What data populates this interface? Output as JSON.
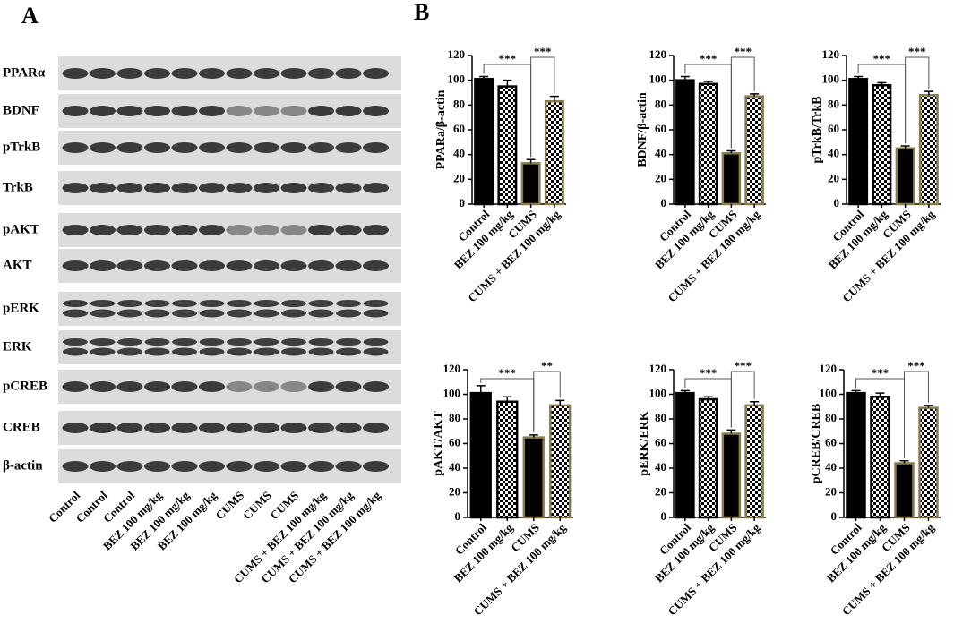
{
  "panels": [
    "A",
    "B"
  ],
  "blot": {
    "rows": [
      "PPARα",
      "BDNF",
      "pTrkB",
      "TrkB",
      "pAKT",
      "AKT",
      "pERK",
      "ERK",
      "pCREB",
      "CREB",
      "β-actin"
    ],
    "lanes": [
      "Control",
      "Control",
      "Control",
      "BEZ 100  mg/kg",
      "BEZ 100  mg/kg",
      "BEZ 100  mg/kg",
      "CUMS",
      "CUMS",
      "CUMS",
      "CUMS + BEZ 100  mg/kg",
      "CUMS + BEZ 100  mg/kg",
      "CUMS + BEZ 100  mg/kg"
    ]
  },
  "chart_data": [
    {
      "type": "bar",
      "y_label": "PPARa/β-actin",
      "categories": [
        "Control",
        "BEZ 100 mg/kg",
        "CUMS",
        "CUMS + BEZ 100 mg/kg"
      ],
      "values": [
        101,
        95,
        33,
        83
      ],
      "errors": [
        2,
        5,
        3,
        4
      ],
      "patterns": [
        "solid",
        "checker",
        "solid",
        "checker"
      ],
      "edge_colors": [
        "#000000",
        "#000000",
        "#8b7d4b",
        "#8b7d4b"
      ],
      "ylim": [
        0,
        120
      ],
      "yticks": [
        0,
        20,
        40,
        60,
        80,
        100,
        120
      ],
      "significance": [
        "***",
        "***"
      ]
    },
    {
      "type": "bar",
      "y_label": "BDNF/β-actin",
      "categories": [
        "Control",
        "BEZ 100 mg/kg",
        "CUMS",
        "CUMS + BEZ 100 mg/kg"
      ],
      "values": [
        100,
        97,
        41,
        87
      ],
      "errors": [
        3,
        2,
        2,
        2
      ],
      "patterns": [
        "solid",
        "checker",
        "solid",
        "checker"
      ],
      "edge_colors": [
        "#000000",
        "#000000",
        "#8b7d4b",
        "#8b7d4b"
      ],
      "ylim": [
        0,
        120
      ],
      "yticks": [
        0,
        20,
        40,
        60,
        80,
        100,
        120
      ],
      "significance": [
        "***",
        "***"
      ]
    },
    {
      "type": "bar",
      "y_label": "pTrkB/TrkB",
      "categories": [
        "Control",
        "BEZ 100 mg/kg",
        "CUMS",
        "CUMS + BEZ 100 mg/kg"
      ],
      "values": [
        101,
        96,
        45,
        88
      ],
      "errors": [
        2,
        2,
        2,
        3
      ],
      "patterns": [
        "solid",
        "checker",
        "solid",
        "checker"
      ],
      "edge_colors": [
        "#000000",
        "#000000",
        "#8b7d4b",
        "#8b7d4b"
      ],
      "ylim": [
        0,
        120
      ],
      "yticks": [
        0,
        20,
        40,
        60,
        80,
        100,
        120
      ],
      "significance": [
        "***",
        "***"
      ]
    },
    {
      "type": "bar",
      "y_label": "pAKT/AKT",
      "categories": [
        "Control",
        "BEZ 100 mg/kg",
        "CUMS",
        "CUMS + BEZ 100 mg/kg"
      ],
      "values": [
        101,
        94,
        65,
        91
      ],
      "errors": [
        6,
        4,
        2,
        4
      ],
      "patterns": [
        "solid",
        "checker",
        "solid",
        "checker"
      ],
      "edge_colors": [
        "#000000",
        "#000000",
        "#8b7d4b",
        "#8b7d4b"
      ],
      "ylim": [
        0,
        120
      ],
      "yticks": [
        0,
        20,
        40,
        60,
        80,
        100,
        120
      ],
      "significance": [
        "***",
        "**"
      ]
    },
    {
      "type": "bar",
      "y_label": "pERK/ERK",
      "categories": [
        "Control",
        "BEZ 100 mg/kg",
        "CUMS",
        "CUMS + BEZ 100 mg/kg"
      ],
      "values": [
        101,
        96,
        68,
        91
      ],
      "errors": [
        2,
        2,
        3,
        3
      ],
      "patterns": [
        "solid",
        "checker",
        "solid",
        "checker"
      ],
      "edge_colors": [
        "#000000",
        "#000000",
        "#8b7d4b",
        "#8b7d4b"
      ],
      "ylim": [
        0,
        120
      ],
      "yticks": [
        0,
        20,
        40,
        60,
        80,
        100,
        120
      ],
      "significance": [
        "***",
        "***"
      ]
    },
    {
      "type": "bar",
      "y_label": "pCREB/CREB",
      "categories": [
        "Control",
        "BEZ 100 mg/kg",
        "CUMS",
        "CUMS + BEZ 100 mg/kg"
      ],
      "values": [
        101,
        98,
        44,
        89
      ],
      "errors": [
        2,
        3,
        2,
        2
      ],
      "patterns": [
        "solid",
        "checker",
        "solid",
        "checker"
      ],
      "edge_colors": [
        "#000000",
        "#000000",
        "#8b7d4b",
        "#8b7d4b"
      ],
      "ylim": [
        0,
        120
      ],
      "yticks": [
        0,
        20,
        40,
        60,
        80,
        100,
        120
      ],
      "significance": [
        "***",
        "***"
      ]
    }
  ]
}
